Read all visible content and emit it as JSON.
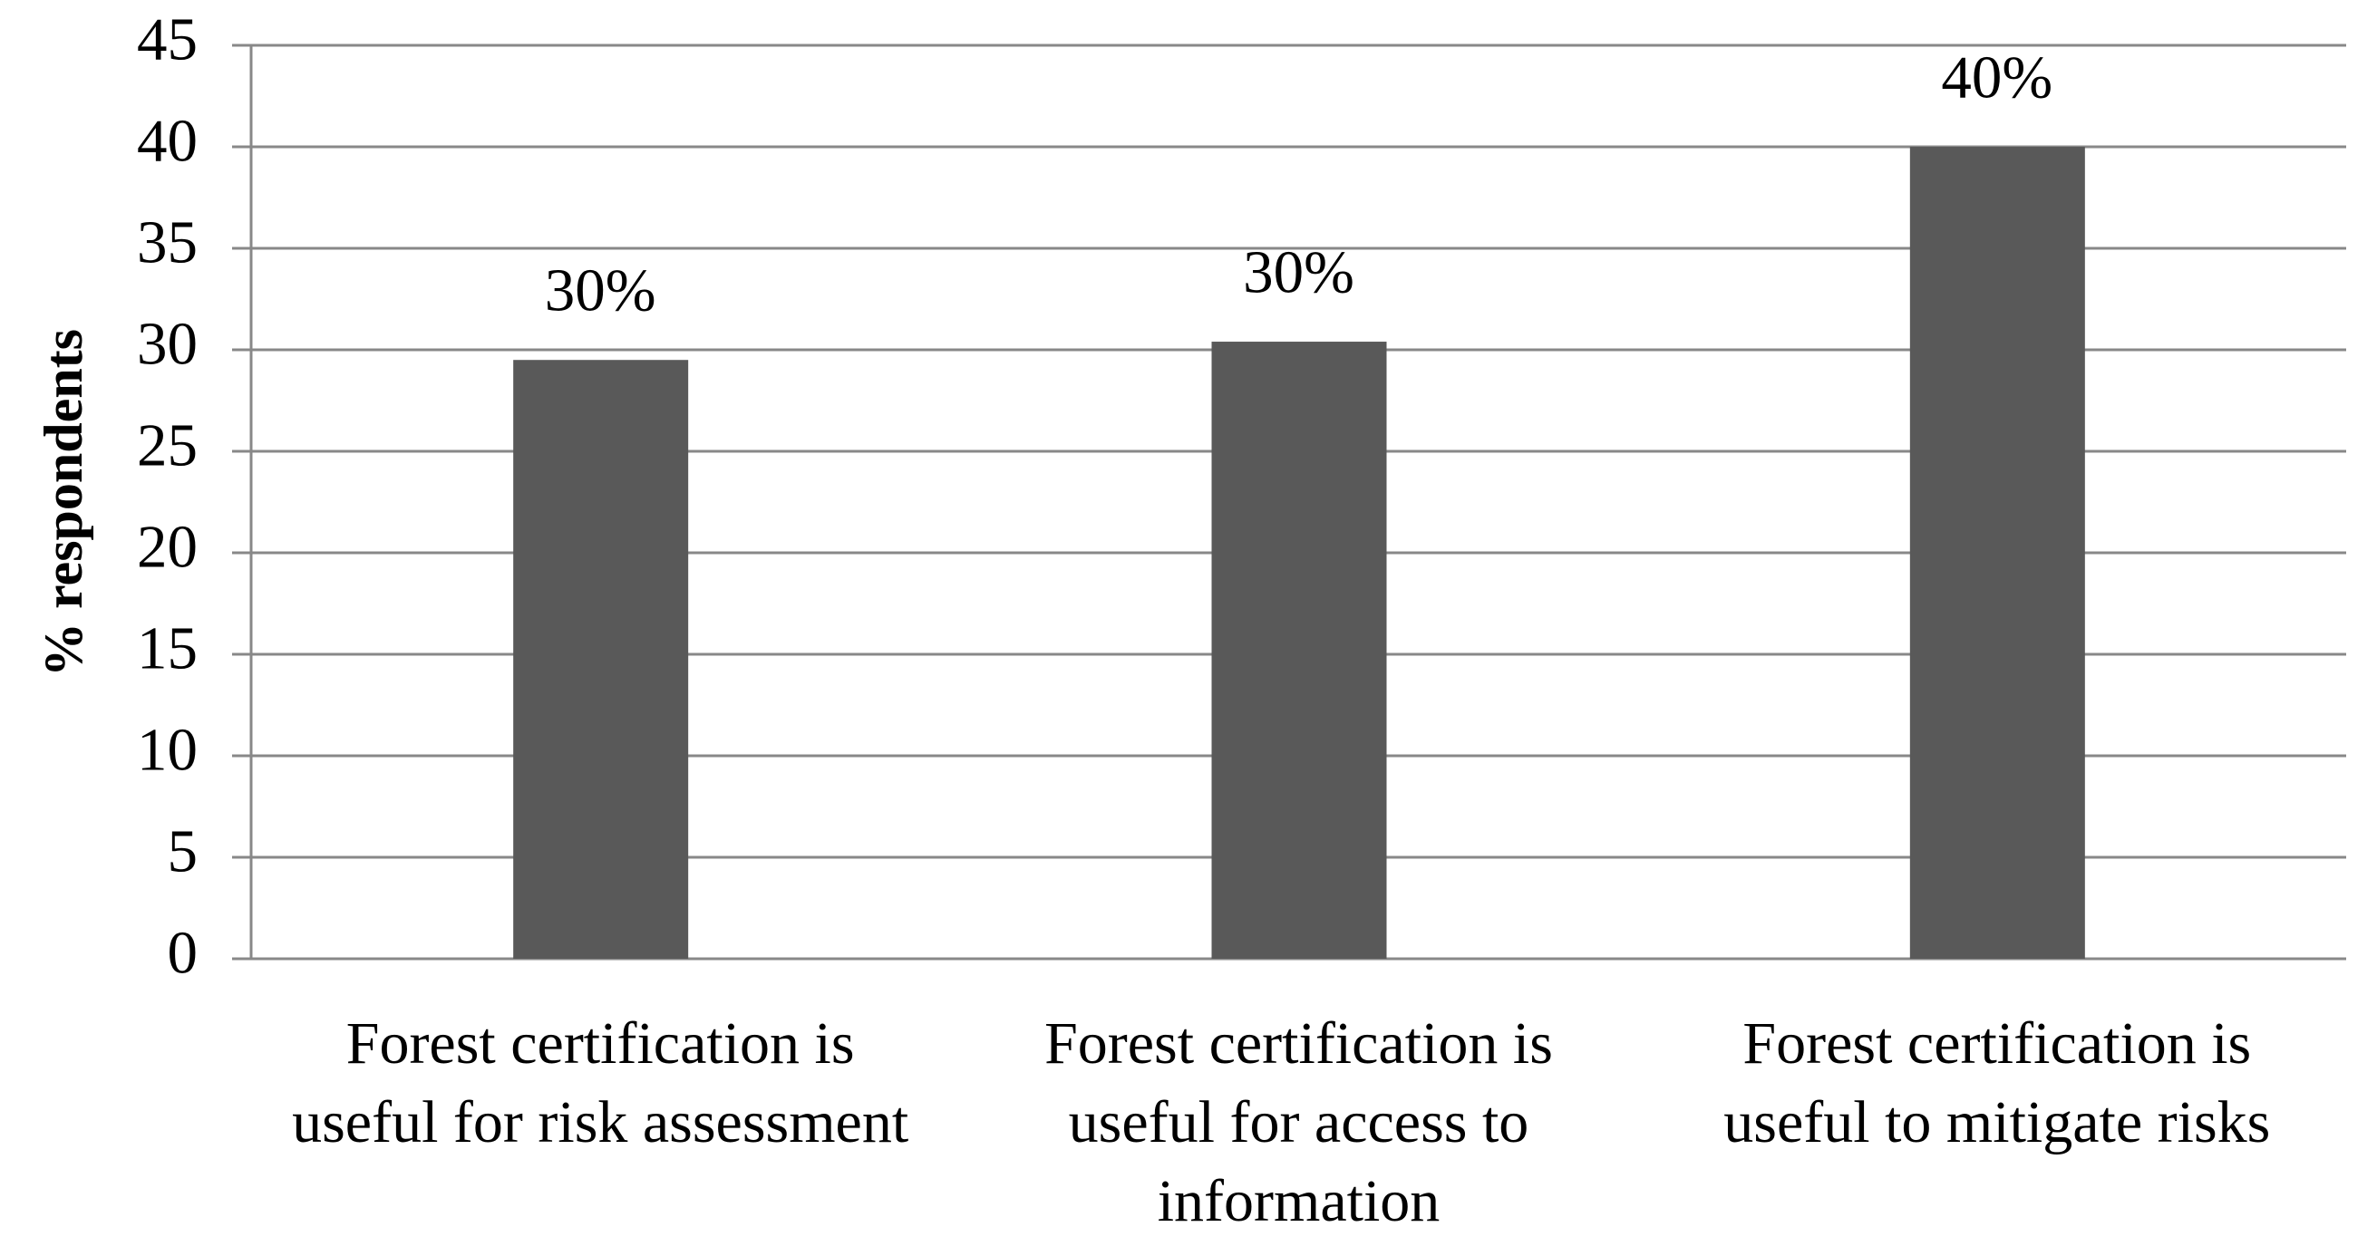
{
  "chart_data": {
    "type": "bar",
    "y_axis_label": "% respondents",
    "categories": [
      "Forest certification is useful for risk assessment",
      "Forest certification is useful for access to information",
      "Forest certification is useful to mitigate risks"
    ],
    "values": [
      29.5,
      30.4,
      40
    ],
    "value_labels": [
      "30%",
      "30%",
      "40%"
    ],
    "color": "#595959",
    "ylim": [
      0,
      45
    ],
    "yticks": [
      0,
      5,
      10,
      15,
      20,
      25,
      30,
      35,
      40,
      45
    ],
    "grid": true
  }
}
